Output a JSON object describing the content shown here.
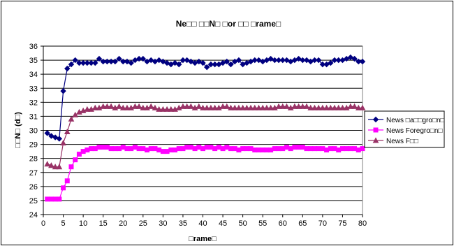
{
  "chart_data": {
    "type": "line",
    "title": "Ne□□ □□N□ □or □□ □rame□",
    "xlabel": "□rame□",
    "ylabel": "□□N□ (d□)",
    "xlim": [
      0,
      80
    ],
    "ylim": [
      24,
      36
    ],
    "xticks": [
      0,
      5,
      10,
      15,
      20,
      25,
      30,
      35,
      40,
      45,
      50,
      55,
      60,
      65,
      70,
      75,
      80
    ],
    "yticks": [
      24,
      25,
      26,
      27,
      28,
      29,
      30,
      31,
      32,
      33,
      34,
      35,
      36
    ],
    "grid": "horizontal",
    "legend_position": "right",
    "x": [
      1,
      2,
      3,
      4,
      5,
      6,
      7,
      8,
      9,
      10,
      11,
      12,
      13,
      14,
      15,
      16,
      17,
      18,
      19,
      20,
      21,
      22,
      23,
      24,
      25,
      26,
      27,
      28,
      29,
      30,
      31,
      32,
      33,
      34,
      35,
      36,
      37,
      38,
      39,
      40,
      41,
      42,
      43,
      44,
      45,
      46,
      47,
      48,
      49,
      50,
      51,
      52,
      53,
      54,
      55,
      56,
      57,
      58,
      59,
      60,
      61,
      62,
      63,
      64,
      65,
      66,
      67,
      68,
      69,
      70,
      71,
      72,
      73,
      74,
      75,
      76,
      77,
      78,
      79,
      80
    ],
    "series": [
      {
        "name": "News □a□□gro□n□",
        "color": "#000080",
        "marker": "diamond",
        "values": [
          29.8,
          29.6,
          29.5,
          29.4,
          32.8,
          34.4,
          34.7,
          35.0,
          34.8,
          34.8,
          34.8,
          34.8,
          34.8,
          35.1,
          34.9,
          34.9,
          34.9,
          34.9,
          35.1,
          34.9,
          34.9,
          34.8,
          35.0,
          35.1,
          35.1,
          34.9,
          35.0,
          34.9,
          35.0,
          34.9,
          34.8,
          34.7,
          34.8,
          34.7,
          35.0,
          35.0,
          34.9,
          34.8,
          34.9,
          34.8,
          34.5,
          34.7,
          34.7,
          34.7,
          34.8,
          34.9,
          34.7,
          34.9,
          35.0,
          34.7,
          34.8,
          34.9,
          35.0,
          35.0,
          34.9,
          35.0,
          35.1,
          35.0,
          35.0,
          35.0,
          35.0,
          34.9,
          35.0,
          35.1,
          35.0,
          35.0,
          34.9,
          35.0,
          35.0,
          34.7,
          34.7,
          34.8,
          35.0,
          35.0,
          35.0,
          35.1,
          35.2,
          35.1,
          34.9,
          34.9
        ]
      },
      {
        "name": "News Foregro□n□",
        "color": "#FF00FF",
        "marker": "square",
        "values": [
          25.1,
          25.1,
          25.1,
          25.1,
          25.9,
          26.4,
          27.4,
          27.9,
          28.3,
          28.5,
          28.6,
          28.7,
          28.7,
          28.8,
          28.8,
          28.8,
          28.7,
          28.7,
          28.7,
          28.8,
          28.7,
          28.7,
          28.8,
          28.7,
          28.7,
          28.6,
          28.7,
          28.7,
          28.6,
          28.5,
          28.5,
          28.6,
          28.6,
          28.7,
          28.7,
          28.8,
          28.8,
          28.7,
          28.8,
          28.7,
          28.8,
          28.8,
          28.7,
          28.8,
          28.7,
          28.8,
          28.7,
          28.7,
          28.6,
          28.7,
          28.7,
          28.7,
          28.6,
          28.6,
          28.6,
          28.6,
          28.6,
          28.7,
          28.7,
          28.7,
          28.8,
          28.7,
          28.8,
          28.8,
          28.8,
          28.7,
          28.7,
          28.7,
          28.7,
          28.7,
          28.6,
          28.7,
          28.7,
          28.6,
          28.7,
          28.7,
          28.7,
          28.7,
          28.6,
          28.7
        ]
      },
      {
        "name": "News F□□",
        "color": "#993366",
        "marker": "triangle",
        "values": [
          27.6,
          27.5,
          27.4,
          27.4,
          29.1,
          29.9,
          30.8,
          31.1,
          31.3,
          31.4,
          31.5,
          31.5,
          31.6,
          31.6,
          31.7,
          31.7,
          31.7,
          31.6,
          31.7,
          31.6,
          31.6,
          31.6,
          31.7,
          31.7,
          31.6,
          31.6,
          31.7,
          31.6,
          31.5,
          31.5,
          31.5,
          31.5,
          31.5,
          31.6,
          31.7,
          31.7,
          31.7,
          31.6,
          31.7,
          31.6,
          31.6,
          31.6,
          31.6,
          31.6,
          31.7,
          31.7,
          31.6,
          31.6,
          31.6,
          31.6,
          31.6,
          31.6,
          31.6,
          31.6,
          31.6,
          31.6,
          31.6,
          31.6,
          31.7,
          31.7,
          31.7,
          31.6,
          31.7,
          31.7,
          31.7,
          31.7,
          31.6,
          31.6,
          31.6,
          31.6,
          31.6,
          31.6,
          31.6,
          31.6,
          31.6,
          31.6,
          31.7,
          31.7,
          31.6,
          31.6
        ]
      }
    ]
  }
}
